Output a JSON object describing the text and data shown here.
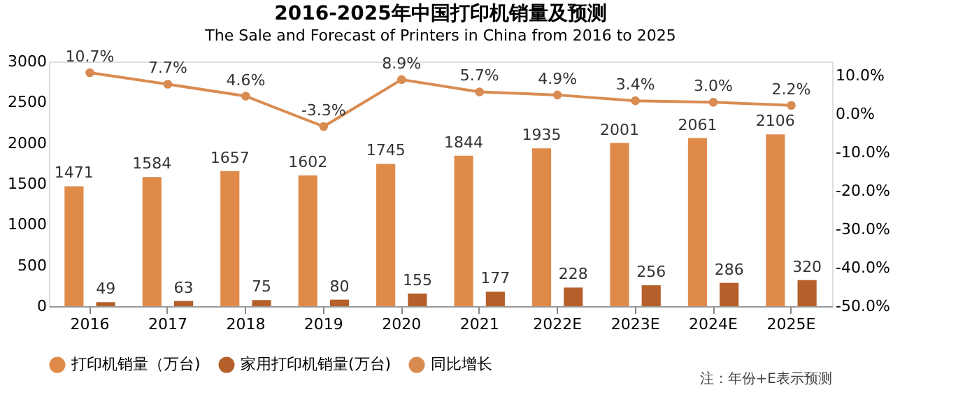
{
  "chart_data": {
    "type": "bar",
    "title": "2016-2025年中国打印机销量及预测",
    "subtitle": "The Sale and Forecast of Printers in China from 2016 to 2025",
    "categories": [
      "2016",
      "2017",
      "2018",
      "2019",
      "2020",
      "2021",
      "2022E",
      "2023E",
      "2024E",
      "2025E"
    ],
    "series": [
      {
        "name": "打印机销量（万台)",
        "color": "#e08a4a",
        "values": [
          1471,
          1584,
          1657,
          1602,
          1745,
          1844,
          1935,
          2001,
          2061,
          2106
        ]
      },
      {
        "name": "家用打印机销量(万台)",
        "color": "#b5602a",
        "values": [
          49,
          63,
          75,
          80,
          155,
          177,
          228,
          256,
          286,
          320
        ]
      },
      {
        "name": "同比增长",
        "type": "line",
        "axis": "y2",
        "color": "#d98c52",
        "marker": "circle",
        "line_style": "solid",
        "values": [
          10.7,
          7.7,
          4.6,
          -3.3,
          8.9,
          5.7,
          4.9,
          3.4,
          3.0,
          2.2
        ],
        "value_labels": [
          "10.7%",
          "7.7%",
          "4.6%",
          "-3.3%",
          "8.9%",
          "5.7%",
          "4.9%",
          "3.4%",
          "3.0%",
          "2.2%"
        ]
      }
    ],
    "data_labels": true,
    "ylim": [
      0,
      3000
    ],
    "yticks": [
      0,
      500,
      1000,
      1500,
      2000,
      2500,
      3000
    ],
    "y2lim": [
      -50,
      13.6
    ],
    "y2ticks": [
      {
        "value": 10,
        "label": "10.0%"
      },
      {
        "value": 0,
        "label": "0.0%"
      },
      {
        "value": -10,
        "label": "-10.0%"
      },
      {
        "value": -20,
        "label": "-20.0%"
      },
      {
        "value": -30,
        "label": "-30.0%"
      },
      {
        "value": -40,
        "label": "-40.0%"
      },
      {
        "value": -50,
        "label": "-50.0%"
      }
    ],
    "grid": false,
    "legend": "bottom",
    "annotations": [
      "注：年份+E表示预测"
    ]
  }
}
